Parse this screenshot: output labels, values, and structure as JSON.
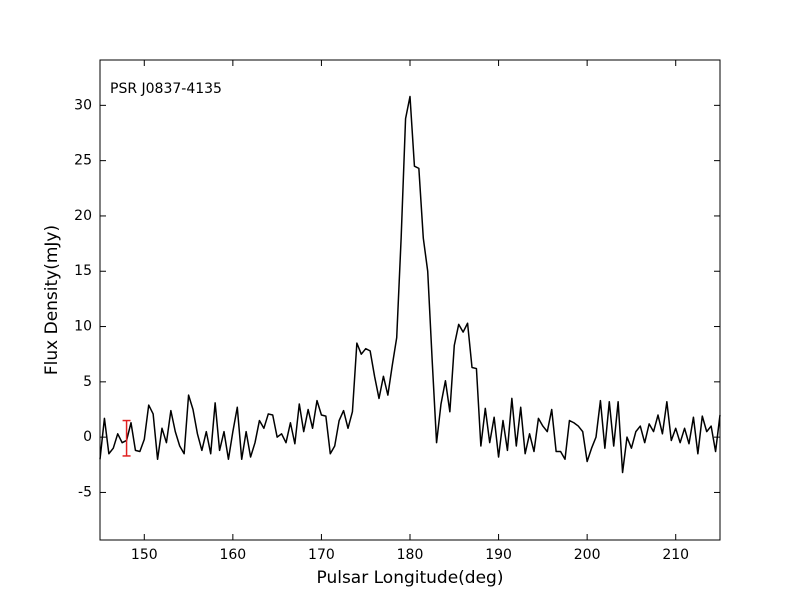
{
  "chart_data": {
    "type": "line",
    "annotation": "PSR J0837-4135",
    "xlabel": "Pulsar Longitude(deg)",
    "ylabel": "Flux Density(mJy)",
    "xlim": [
      145,
      215
    ],
    "ylim": [
      -9.3,
      34.1
    ],
    "xticks": [
      150,
      160,
      170,
      180,
      190,
      200,
      210
    ],
    "yticks": [
      -5,
      0,
      5,
      10,
      15,
      20,
      25,
      30
    ],
    "grid": false,
    "x": [
      145,
      145.5,
      146,
      146.5,
      147,
      147.5,
      148,
      148.5,
      149,
      149.5,
      150,
      150.5,
      151,
      151.5,
      152,
      152.5,
      153,
      153.5,
      154,
      154.5,
      155,
      155.5,
      156,
      156.5,
      157,
      157.5,
      158,
      158.5,
      159,
      159.5,
      160,
      160.5,
      161,
      161.5,
      162,
      162.5,
      163,
      163.5,
      164,
      164.5,
      165,
      165.5,
      166,
      166.5,
      167,
      167.5,
      168,
      168.5,
      169,
      169.5,
      170,
      170.5,
      171,
      171.5,
      172,
      172.5,
      173,
      173.5,
      174,
      174.5,
      175,
      175.5,
      176,
      176.5,
      177,
      177.5,
      178,
      178.5,
      179,
      179.5,
      180,
      180.5,
      181,
      181.5,
      182,
      182.5,
      183,
      183.5,
      184,
      184.5,
      185,
      185.5,
      186,
      186.5,
      187,
      187.5,
      188,
      188.5,
      189,
      189.5,
      190,
      190.5,
      191,
      191.5,
      192,
      192.5,
      193,
      193.5,
      194,
      194.5,
      195,
      195.5,
      196,
      196.5,
      197,
      197.5,
      198,
      198.5,
      199,
      199.5,
      200,
      200.5,
      201,
      201.5,
      202,
      202.5,
      203,
      203.5,
      204,
      204.5,
      205,
      205.5,
      206,
      206.5,
      207,
      207.5,
      208,
      208.5,
      209,
      209.5,
      210,
      210.5,
      211,
      211.5,
      212,
      212.5,
      213,
      213.5,
      214,
      214.5,
      215
    ],
    "series": [
      {
        "color": "#000000",
        "values": [
          -2,
          1.7,
          -1.5,
          -1,
          0.3,
          -0.5,
          -0.3,
          1.3,
          -1.2,
          -1.3,
          -0.2,
          2.9,
          2.1,
          -2,
          0.8,
          -0.5,
          2.4,
          0.5,
          -0.8,
          -1.5,
          3.8,
          2.5,
          0.3,
          -1.2,
          0.5,
          -1.5,
          3.1,
          -1.2,
          0.5,
          -2,
          0.5,
          2.7,
          -2,
          0.5,
          -1.8,
          -0.5,
          1.5,
          0.8,
          2.1,
          2,
          0,
          0.3,
          -0.5,
          1.3,
          -0.6,
          3,
          0.5,
          2.5,
          0.8,
          3.3,
          2,
          1.9,
          -1.5,
          -0.8,
          1.5,
          2.4,
          0.8,
          2.3,
          8.5,
          7.5,
          8,
          7.8,
          5.5,
          3.5,
          5.5,
          3.8,
          6.5,
          9,
          18,
          28.8,
          30.8,
          24.5,
          24.3,
          18,
          15,
          7,
          -0.5,
          3,
          5.1,
          2.3,
          8.3,
          10.2,
          9.5,
          10.3,
          6.3,
          6.2,
          -0.8,
          2.6,
          -0.5,
          1.8,
          -1.8,
          1.5,
          -1.2,
          3.5,
          -0.8,
          2.7,
          -1.5,
          0.3,
          -1.3,
          1.7,
          1,
          0.5,
          2.5,
          -1.3,
          -1.3,
          -2,
          1.5,
          1.3,
          1,
          0.5,
          -2.2,
          -1,
          0,
          3.3,
          -1,
          3.2,
          -0.8,
          3.2,
          -3.2,
          0,
          -1,
          0.5,
          1,
          -0.5,
          1.2,
          0.5,
          2,
          0.3,
          3.2,
          -0.3,
          0.8,
          -0.5,
          0.8,
          -0.6,
          1.8,
          -1.5,
          1.9,
          0.5,
          1,
          -1.3,
          2
        ]
      }
    ],
    "errorbar": {
      "x": 148,
      "value": -0.1,
      "error": 1.6,
      "color": "#e02020"
    }
  }
}
